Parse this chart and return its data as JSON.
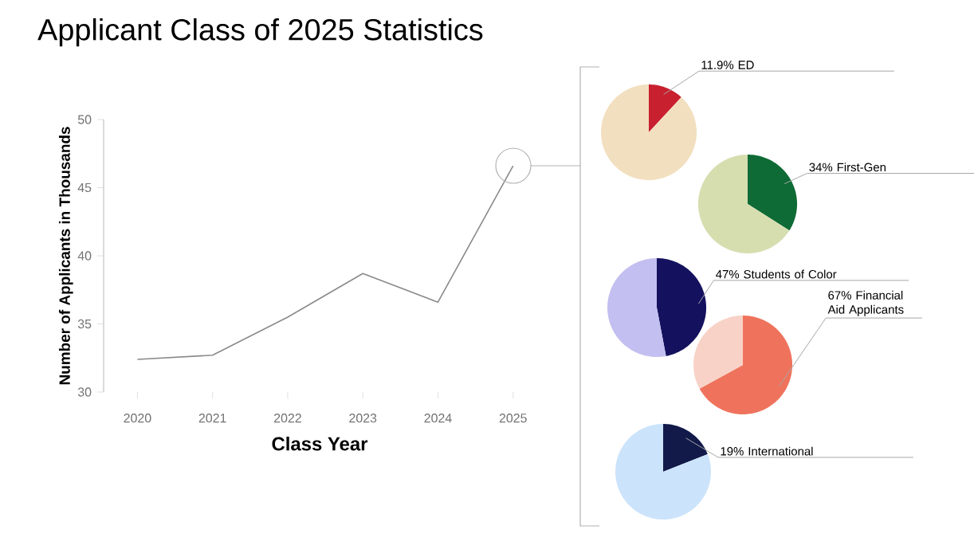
{
  "chart_data": [
    {
      "type": "line",
      "title": "Applicant Class of 2025 Statistics",
      "xlabel": "Class Year",
      "ylabel": "Number of Applicants in Thousands",
      "categories": [
        "2020",
        "2021",
        "2022",
        "2023",
        "2024",
        "2025"
      ],
      "values": [
        32.4,
        32.7,
        35.5,
        38.7,
        36.6,
        46.6
      ],
      "color": "#8a8a8a",
      "ylim": [
        30,
        50
      ],
      "yticks": [
        30,
        35,
        40,
        45,
        50
      ]
    },
    {
      "type": "pie",
      "categories": [
        "11.9% ED",
        null
      ],
      "values": [
        11.9,
        88.1
      ],
      "colors": [
        "#c8202f",
        "#f2dfbf"
      ]
    },
    {
      "type": "pie",
      "categories": [
        "34% First-Gen",
        null
      ],
      "values": [
        34,
        66
      ],
      "colors": [
        "#0f6b35",
        "#d6deb0"
      ]
    },
    {
      "type": "pie",
      "categories": [
        "47% Students of Color",
        null
      ],
      "values": [
        47,
        53
      ],
      "colors": [
        "#14115e",
        "#c3bff0"
      ]
    },
    {
      "type": "pie",
      "categories": [
        "67% Financial Aid Applicants",
        null
      ],
      "values": [
        67,
        33
      ],
      "colors": [
        "#ef735c",
        "#f8d2c7"
      ]
    },
    {
      "type": "pie",
      "categories": [
        "19% International",
        null
      ],
      "values": [
        19,
        81
      ],
      "colors": [
        "#121a4a",
        "#cce4fb"
      ]
    }
  ]
}
